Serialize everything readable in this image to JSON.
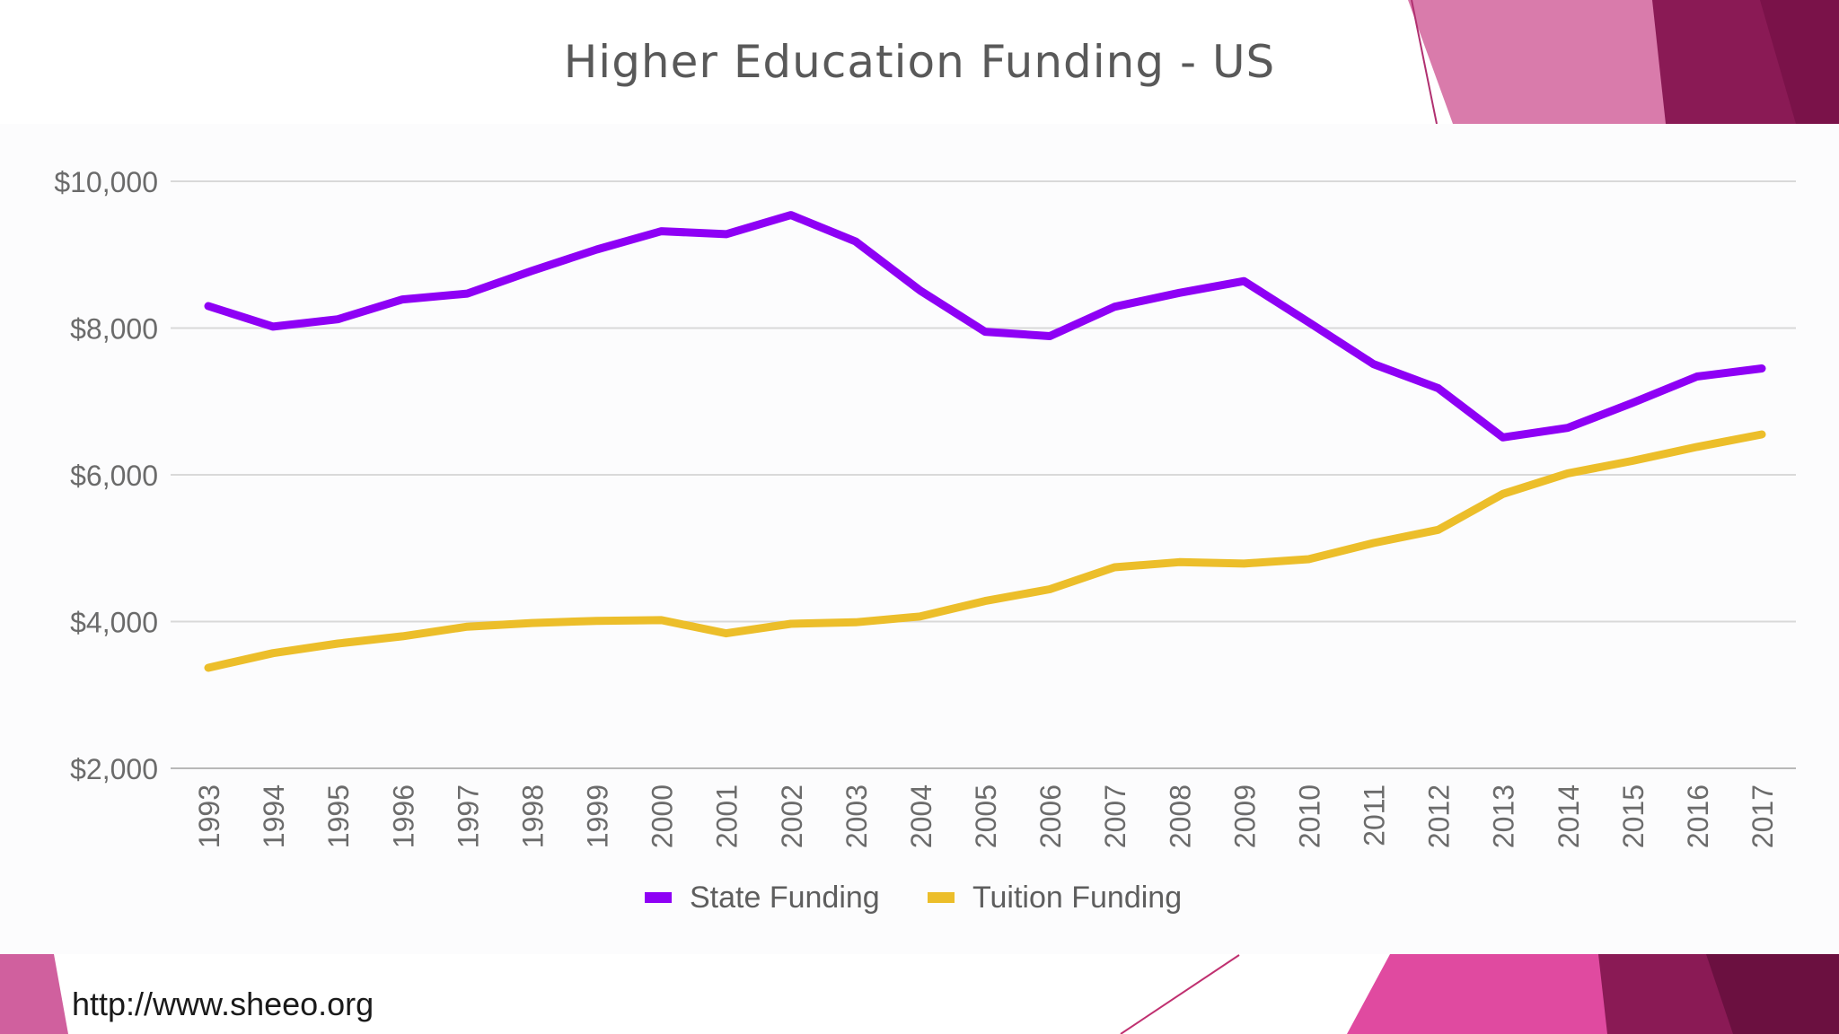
{
  "slide": {
    "title": "Higher Education Funding - US",
    "source_url": "http://www.sheeo.org",
    "accent_colors": [
      "#e04aa0",
      "#c75a97",
      "#8a1a55",
      "#6b1040"
    ]
  },
  "chart_data": {
    "type": "line",
    "categories": [
      "1993",
      "1994",
      "1995",
      "1996",
      "1997",
      "1998",
      "1999",
      "2000",
      "2001",
      "2002",
      "2003",
      "2004",
      "2005",
      "2006",
      "2007",
      "2008",
      "2009",
      "2010",
      "2011",
      "2012",
      "2013",
      "2014",
      "2015",
      "2016",
      "2017"
    ],
    "series": [
      {
        "name": "State Funding",
        "color": "#8e00f5",
        "values": [
          8300,
          8020,
          8120,
          8390,
          8470,
          8780,
          9070,
          9320,
          9280,
          9540,
          9180,
          8510,
          7950,
          7890,
          8290,
          8480,
          8640,
          8080,
          7510,
          7180,
          6510,
          6640,
          6980,
          7340,
          7450
        ]
      },
      {
        "name": "Tuition Funding",
        "color": "#ecbe2a",
        "values": [
          3370,
          3570,
          3700,
          3800,
          3930,
          3980,
          4010,
          4020,
          3840,
          3970,
          3990,
          4070,
          4280,
          4440,
          4740,
          4810,
          4790,
          4850,
          5070,
          5250,
          5740,
          6020,
          6190,
          6380,
          6550
        ]
      }
    ],
    "y_ticks": [
      "$2,000",
      "$4,000",
      "$6,000",
      "$8,000",
      "$10,000"
    ],
    "y_tick_values": [
      2000,
      4000,
      6000,
      8000,
      10000
    ],
    "ylim": [
      2000,
      10000
    ],
    "xlabel": "",
    "ylabel": "",
    "grid": true,
    "legend_position": "bottom"
  }
}
